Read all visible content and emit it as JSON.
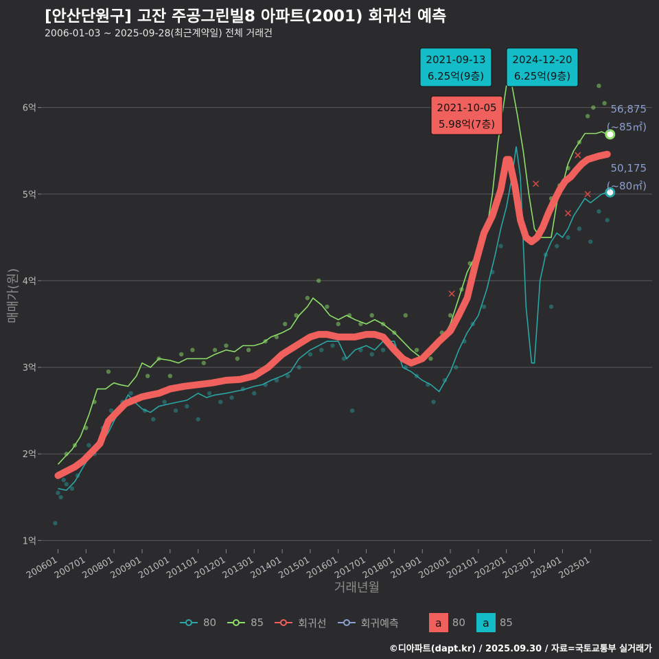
{
  "header": {
    "title": "[안산단원구] 고잔 주공그린빌8 아파트(2001) 회귀선 예측",
    "subtitle": "2006-01-03 ~ 2025-09-28(최근계약일) 전체 거래건"
  },
  "axes": {
    "xlabel": "거래년월",
    "ylabel": "매매가(원)"
  },
  "credit": "©디아파트(dapt.kr) / 2025.09.30 / 자료=국토교통부 실거래가",
  "legend": {
    "items": [
      {
        "label": "80",
        "color": "#2aa6a6"
      },
      {
        "label": "85",
        "color": "#8ee06a"
      },
      {
        "label": "회귀선",
        "color": "#f0605c"
      },
      {
        "label": "회귀예측",
        "color": "#8b9fd1"
      }
    ],
    "boxes": [
      {
        "glyph": "a",
        "label": "80",
        "color": "#f0605c"
      },
      {
        "glyph": "a",
        "label": "85",
        "color": "#14bcc8"
      }
    ]
  },
  "colors": {
    "area80": "#2aa6a6",
    "area85": "#8ee06a",
    "regression": "#f0605c",
    "prediction": "#8b9fd1"
  },
  "chart_data": {
    "type": "line",
    "x_unit": "year",
    "xlim": [
      2005.4,
      2027.2
    ],
    "ylim": [
      0.9,
      6.75
    ],
    "y_ticks": [
      {
        "value": 1,
        "label": "1억"
      },
      {
        "value": 2,
        "label": "2억"
      },
      {
        "value": 3,
        "label": "3억"
      },
      {
        "value": 4,
        "label": "4억"
      },
      {
        "value": 5,
        "label": "5억"
      },
      {
        "value": 6,
        "label": "6억"
      }
    ],
    "x_ticks": [
      {
        "value": 2006.0,
        "label": "200601"
      },
      {
        "value": 2007.0,
        "label": "200701"
      },
      {
        "value": 2008.0,
        "label": "200801"
      },
      {
        "value": 2009.0,
        "label": "200901"
      },
      {
        "value": 2010.0,
        "label": "201001"
      },
      {
        "value": 2011.0,
        "label": "201101"
      },
      {
        "value": 2012.0,
        "label": "201201"
      },
      {
        "value": 2013.0,
        "label": "201301"
      },
      {
        "value": 2014.0,
        "label": "201401"
      },
      {
        "value": 2015.0,
        "label": "201501"
      },
      {
        "value": 2016.0,
        "label": "201601"
      },
      {
        "value": 2017.0,
        "label": "201701"
      },
      {
        "value": 2018.0,
        "label": "201801"
      },
      {
        "value": 2019.0,
        "label": "201901"
      },
      {
        "value": 2020.0,
        "label": "202001"
      },
      {
        "value": 2021.0,
        "label": "202101"
      },
      {
        "value": 2022.0,
        "label": "202201"
      },
      {
        "value": 2023.0,
        "label": "202301"
      },
      {
        "value": 2024.0,
        "label": "202401"
      },
      {
        "value": 2025.0,
        "label": "202501"
      }
    ],
    "series": [
      {
        "name": "80",
        "x": [
          2006.0,
          2006.3,
          2006.6,
          2006.9,
          2007.2,
          2007.5,
          2007.8,
          2008.0,
          2008.2,
          2008.5,
          2008.8,
          2009.0,
          2009.3,
          2009.6,
          2010.0,
          2010.3,
          2010.6,
          2011.0,
          2011.3,
          2011.6,
          2012.0,
          2012.3,
          2012.6,
          2013.0,
          2013.3,
          2013.6,
          2014.0,
          2014.3,
          2014.6,
          2015.0,
          2015.3,
          2015.6,
          2016.0,
          2016.3,
          2016.6,
          2017.0,
          2017.3,
          2017.6,
          2018.0,
          2018.3,
          2018.6,
          2019.0,
          2019.3,
          2019.6,
          2020.0,
          2020.3,
          2020.6,
          2021.0,
          2021.3,
          2021.6,
          2021.8,
          2022.0,
          2022.2,
          2022.35,
          2022.5,
          2022.7,
          2022.9,
          2023.0,
          2023.2,
          2023.4,
          2023.6,
          2023.8,
          2024.0,
          2024.2,
          2024.4,
          2024.6,
          2024.8,
          2025.0,
          2025.2,
          2025.4,
          2025.6
        ],
        "values": [
          1.6,
          1.58,
          1.68,
          1.85,
          2.0,
          2.1,
          2.25,
          2.38,
          2.5,
          2.68,
          2.58,
          2.52,
          2.48,
          2.55,
          2.58,
          2.6,
          2.62,
          2.7,
          2.65,
          2.68,
          2.7,
          2.72,
          2.74,
          2.78,
          2.8,
          2.85,
          2.9,
          2.95,
          3.1,
          3.2,
          3.25,
          3.3,
          3.3,
          3.1,
          3.2,
          3.25,
          3.2,
          3.3,
          3.3,
          3.0,
          2.95,
          2.85,
          2.8,
          2.72,
          2.95,
          3.2,
          3.4,
          3.6,
          3.9,
          4.3,
          4.6,
          4.85,
          5.2,
          5.55,
          5.2,
          3.7,
          3.05,
          3.05,
          4.0,
          4.3,
          4.45,
          4.55,
          4.5,
          4.6,
          4.75,
          4.85,
          4.95,
          4.9,
          4.95,
          5.0,
          5.02
        ]
      },
      {
        "name": "85",
        "x": [
          2006.0,
          2006.2,
          2006.5,
          2006.8,
          2007.1,
          2007.4,
          2007.7,
          2007.9,
          2008.0,
          2008.2,
          2008.5,
          2008.8,
          2009.0,
          2009.3,
          2009.6,
          2010.0,
          2010.3,
          2010.6,
          2011.0,
          2011.3,
          2011.6,
          2012.0,
          2012.3,
          2012.6,
          2013.0,
          2013.3,
          2013.6,
          2014.0,
          2014.3,
          2014.6,
          2014.9,
          2015.1,
          2015.4,
          2015.7,
          2016.0,
          2016.3,
          2016.6,
          2017.0,
          2017.3,
          2017.6,
          2018.0,
          2018.3,
          2018.6,
          2019.0,
          2019.3,
          2019.6,
          2020.0,
          2020.3,
          2020.6,
          2021.0,
          2021.3,
          2021.5,
          2021.7,
          2022.0,
          2022.2,
          2022.4,
          2022.6,
          2022.8,
          2023.0,
          2023.2,
          2023.4,
          2023.6,
          2023.8,
          2024.0,
          2024.2,
          2024.4,
          2024.6,
          2024.8,
          2025.0,
          2025.2,
          2025.4,
          2025.6
        ],
        "values": [
          1.88,
          1.95,
          2.05,
          2.2,
          2.45,
          2.75,
          2.75,
          2.8,
          2.82,
          2.8,
          2.78,
          2.9,
          3.05,
          3.0,
          3.1,
          3.08,
          3.05,
          3.1,
          3.1,
          3.1,
          3.15,
          3.2,
          3.18,
          3.25,
          3.25,
          3.28,
          3.35,
          3.4,
          3.45,
          3.6,
          3.7,
          3.8,
          3.72,
          3.6,
          3.55,
          3.6,
          3.55,
          3.5,
          3.55,
          3.5,
          3.4,
          3.3,
          3.2,
          3.1,
          3.15,
          3.25,
          3.5,
          3.8,
          4.1,
          4.35,
          4.6,
          5.0,
          5.6,
          6.25,
          6.25,
          5.9,
          5.5,
          5.0,
          4.6,
          4.5,
          4.5,
          4.5,
          4.9,
          5.1,
          5.35,
          5.5,
          5.6,
          5.7,
          5.7,
          5.7,
          5.72,
          5.69
        ]
      },
      {
        "name": "회귀선",
        "x": [
          2006.0,
          2006.3,
          2006.6,
          2006.9,
          2007.2,
          2007.5,
          2007.8,
          2008.1,
          2008.4,
          2008.7,
          2009.0,
          2009.3,
          2009.6,
          2010.0,
          2010.5,
          2011.0,
          2011.5,
          2012.0,
          2012.5,
          2013.0,
          2013.5,
          2014.0,
          2014.5,
          2015.0,
          2015.3,
          2015.6,
          2016.0,
          2016.3,
          2016.6,
          2017.0,
          2017.3,
          2017.6,
          2018.0,
          2018.3,
          2018.6,
          2019.0,
          2019.3,
          2019.6,
          2020.0,
          2020.3,
          2020.6,
          2020.9,
          2021.2,
          2021.5,
          2021.8,
          2022.0,
          2022.1,
          2022.3,
          2022.5,
          2022.7,
          2022.9,
          2023.1,
          2023.3,
          2023.5,
          2023.7,
          2023.9,
          2024.1,
          2024.3,
          2024.5,
          2024.7,
          2024.9,
          2025.1,
          2025.3,
          2025.6
        ],
        "values": [
          1.75,
          1.8,
          1.85,
          1.92,
          2.02,
          2.12,
          2.38,
          2.48,
          2.58,
          2.62,
          2.66,
          2.68,
          2.7,
          2.75,
          2.78,
          2.8,
          2.82,
          2.85,
          2.86,
          2.9,
          3.0,
          3.15,
          3.25,
          3.35,
          3.38,
          3.38,
          3.35,
          3.35,
          3.35,
          3.38,
          3.38,
          3.35,
          3.2,
          3.1,
          3.05,
          3.1,
          3.2,
          3.3,
          3.42,
          3.6,
          3.8,
          4.2,
          4.55,
          4.75,
          5.05,
          5.4,
          5.4,
          5.1,
          4.7,
          4.5,
          4.45,
          4.5,
          4.62,
          4.78,
          4.92,
          5.05,
          5.15,
          5.2,
          5.28,
          5.35,
          5.4,
          5.42,
          5.44,
          5.46
        ]
      }
    ],
    "scatter": {
      "series80": [
        [
          2005.9,
          1.2
        ],
        [
          2006.0,
          1.55
        ],
        [
          2006.1,
          1.5
        ],
        [
          2006.2,
          1.7
        ],
        [
          2006.3,
          1.65
        ],
        [
          2006.5,
          1.6
        ],
        [
          2006.7,
          1.75
        ],
        [
          2006.9,
          1.9
        ],
        [
          2007.1,
          2.1
        ],
        [
          2007.3,
          2.0
        ],
        [
          2007.6,
          2.3
        ],
        [
          2007.9,
          2.5
        ],
        [
          2008.3,
          2.6
        ],
        [
          2008.6,
          2.7
        ],
        [
          2009.1,
          2.5
        ],
        [
          2009.4,
          2.4
        ],
        [
          2009.8,
          2.6
        ],
        [
          2010.2,
          2.5
        ],
        [
          2010.6,
          2.55
        ],
        [
          2011.0,
          2.4
        ],
        [
          2011.4,
          2.7
        ],
        [
          2011.8,
          2.6
        ],
        [
          2012.2,
          2.65
        ],
        [
          2012.6,
          2.75
        ],
        [
          2013.0,
          2.7
        ],
        [
          2013.4,
          2.8
        ],
        [
          2013.8,
          2.85
        ],
        [
          2014.2,
          2.9
        ],
        [
          2014.6,
          3.0
        ],
        [
          2015.0,
          3.15
        ],
        [
          2015.4,
          3.2
        ],
        [
          2015.8,
          3.25
        ],
        [
          2016.2,
          3.1
        ],
        [
          2016.5,
          2.5
        ],
        [
          2016.8,
          3.2
        ],
        [
          2017.2,
          3.15
        ],
        [
          2017.6,
          3.2
        ],
        [
          2018.0,
          3.25
        ],
        [
          2018.4,
          3.0
        ],
        [
          2018.8,
          2.9
        ],
        [
          2019.2,
          2.8
        ],
        [
          2019.4,
          2.6
        ],
        [
          2019.8,
          2.85
        ],
        [
          2020.2,
          3.0
        ],
        [
          2020.5,
          3.3
        ],
        [
          2020.8,
          3.5
        ],
        [
          2021.2,
          3.7
        ],
        [
          2021.5,
          4.1
        ],
        [
          2021.8,
          4.4
        ],
        [
          2023.4,
          4.3
        ],
        [
          2023.6,
          3.7
        ],
        [
          2023.8,
          4.4
        ],
        [
          2024.2,
          4.5
        ],
        [
          2024.6,
          4.6
        ],
        [
          2025.0,
          4.45
        ],
        [
          2025.3,
          4.8
        ],
        [
          2025.6,
          4.7
        ]
      ],
      "series85": [
        [
          2006.3,
          2.0
        ],
        [
          2006.6,
          2.1
        ],
        [
          2007.0,
          2.3
        ],
        [
          2007.3,
          2.6
        ],
        [
          2007.8,
          2.95
        ],
        [
          2009.2,
          2.9
        ],
        [
          2009.6,
          3.1
        ],
        [
          2010.0,
          2.9
        ],
        [
          2010.4,
          3.15
        ],
        [
          2010.8,
          3.2
        ],
        [
          2011.2,
          3.05
        ],
        [
          2011.6,
          3.2
        ],
        [
          2012.0,
          3.25
        ],
        [
          2012.4,
          3.1
        ],
        [
          2012.8,
          3.2
        ],
        [
          2013.4,
          3.3
        ],
        [
          2013.8,
          3.35
        ],
        [
          2014.1,
          3.5
        ],
        [
          2014.5,
          3.6
        ],
        [
          2014.9,
          3.8
        ],
        [
          2015.3,
          4.0
        ],
        [
          2015.6,
          3.7
        ],
        [
          2016.0,
          3.5
        ],
        [
          2016.4,
          3.6
        ],
        [
          2016.8,
          3.5
        ],
        [
          2017.2,
          3.6
        ],
        [
          2017.6,
          3.5
        ],
        [
          2018.0,
          3.4
        ],
        [
          2018.4,
          3.6
        ],
        [
          2018.8,
          3.2
        ],
        [
          2019.3,
          3.1
        ],
        [
          2019.7,
          3.4
        ],
        [
          2020.0,
          3.6
        ],
        [
          2020.4,
          3.9
        ],
        [
          2020.7,
          4.2
        ],
        [
          2021.1,
          4.5
        ],
        [
          2021.4,
          4.7
        ],
        [
          2021.6,
          4.85
        ],
        [
          2023.6,
          4.95
        ],
        [
          2023.9,
          5.1
        ],
        [
          2024.2,
          5.3
        ],
        [
          2024.6,
          5.6
        ],
        [
          2024.9,
          5.9
        ],
        [
          2025.1,
          6.0
        ],
        [
          2025.3,
          6.25
        ],
        [
          2025.5,
          6.05
        ]
      ]
    },
    "crosses": [
      [
        2020.05,
        3.85
      ],
      [
        2023.05,
        5.12
      ],
      [
        2024.55,
        5.45
      ],
      [
        2024.9,
        5.0
      ],
      [
        2024.2,
        4.78
      ]
    ],
    "callouts": [
      {
        "date": "2021-09-13",
        "price": "6.25억(9층)",
        "color": "#14bcc8",
        "x": 2021.7,
        "y": 6.25
      },
      {
        "date": "2024-12-20",
        "price": "6.25억(9층)",
        "color": "#14bcc8",
        "x": 2024.97,
        "y": 6.25
      },
      {
        "date": "2021-10-05",
        "price": "5.98억(7층)",
        "color": "#f0605c",
        "x": 2021.76,
        "y": 5.98
      }
    ],
    "endpoints": [
      {
        "series": "85",
        "x": 2025.7,
        "y": 5.69,
        "value": "56,875",
        "note": "(~85㎡)",
        "color": "#8ee06a"
      },
      {
        "series": "80",
        "x": 2025.7,
        "y": 5.02,
        "value": "50,175",
        "note": "(~80㎡)",
        "color": "#2aa6a6"
      }
    ]
  }
}
